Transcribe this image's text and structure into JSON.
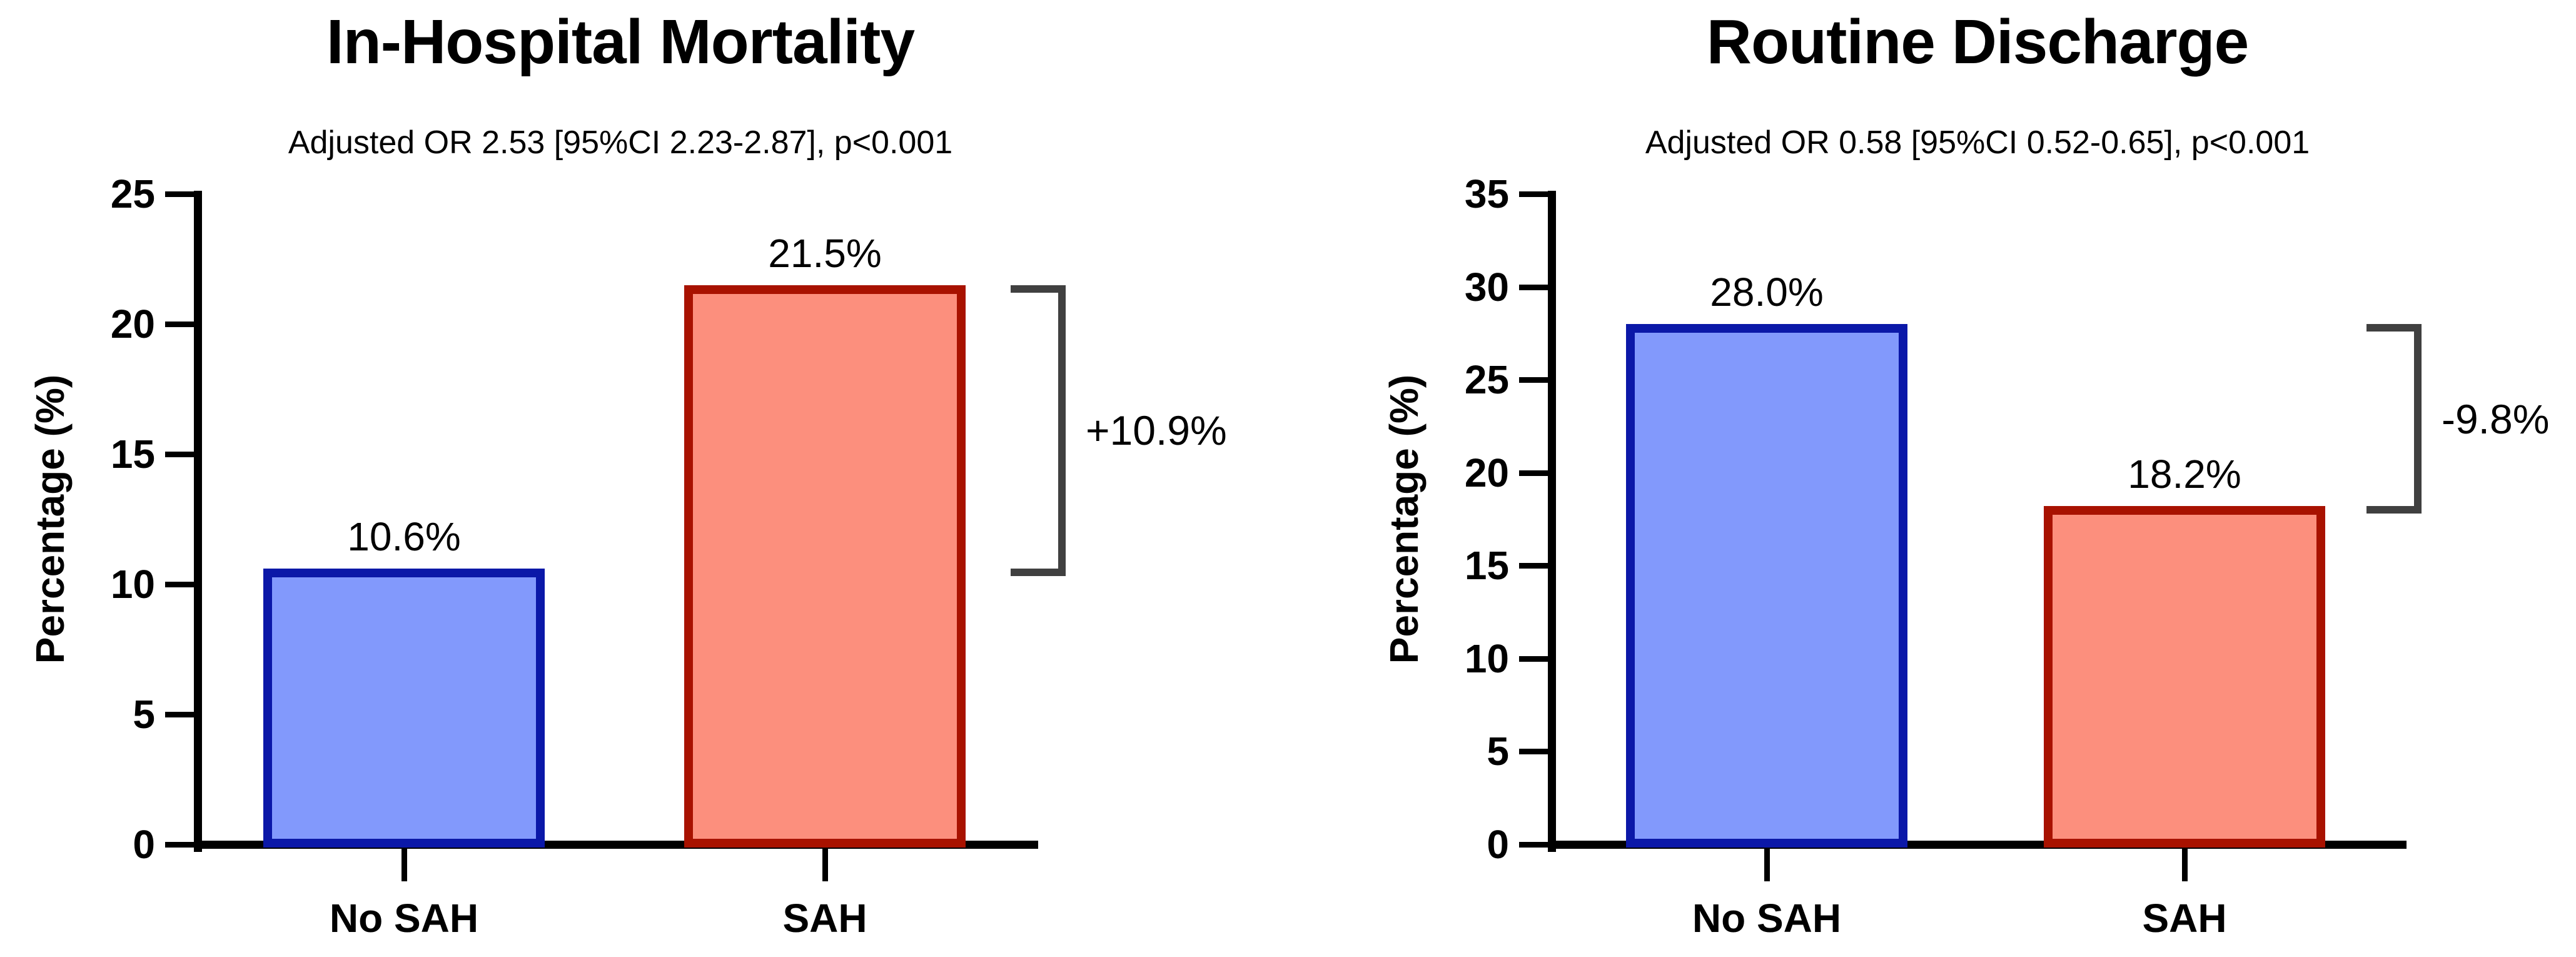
{
  "figure": {
    "background": "#ffffff",
    "axis_color": "#000000",
    "bracket_color": "#404040"
  },
  "chart_data": [
    {
      "type": "bar",
      "title": "In-Hospital Mortality",
      "subtitle": "Adjusted OR 2.53 [95%CI 2.23-2.87], p<0.001",
      "xlabel": "",
      "ylabel": "Percentage (%)",
      "categories": [
        "No SAH",
        "SAH"
      ],
      "values": [
        10.6,
        21.5
      ],
      "value_labels": [
        "10.6%",
        "21.5%"
      ],
      "ylim": [
        0,
        25
      ],
      "yticks": [
        0,
        5,
        10,
        15,
        20,
        25
      ],
      "grid": false,
      "legend": "none",
      "series_colors": [
        {
          "name": "No SAH",
          "fill": "#8299fc",
          "border": "#0b18a8"
        },
        {
          "name": "SAH",
          "fill": "#fc8f7d",
          "border": "#a81200"
        }
      ],
      "difference_bracket": {
        "label": "+10.9%",
        "between": [
          21.5,
          10.6
        ],
        "color": "#404040"
      }
    },
    {
      "type": "bar",
      "title": "Routine Discharge",
      "subtitle": "Adjusted OR 0.58 [95%CI 0.52-0.65], p<0.001",
      "xlabel": "",
      "ylabel": "Percentage (%)",
      "categories": [
        "No SAH",
        "SAH"
      ],
      "values": [
        28.0,
        18.2
      ],
      "value_labels": [
        "28.0%",
        "18.2%"
      ],
      "ylim": [
        0,
        35
      ],
      "yticks": [
        0,
        5,
        10,
        15,
        20,
        25,
        30,
        35
      ],
      "grid": false,
      "legend": "none",
      "series_colors": [
        {
          "name": "No SAH",
          "fill": "#8299fc",
          "border": "#0b18a8"
        },
        {
          "name": "SAH",
          "fill": "#fc8f7d",
          "border": "#a81200"
        }
      ],
      "difference_bracket": {
        "label": "-9.8%",
        "between": [
          28.0,
          18.2
        ],
        "color": "#404040"
      }
    }
  ]
}
